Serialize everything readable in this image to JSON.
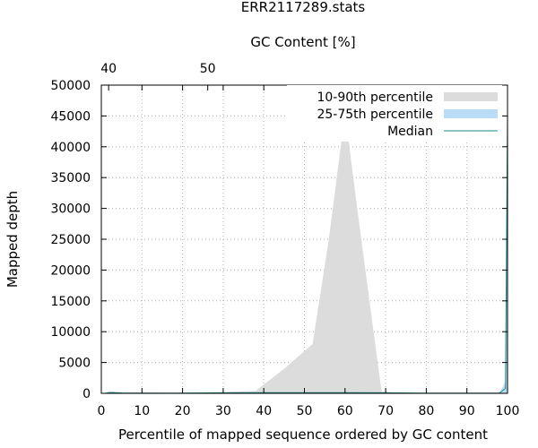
{
  "chart_data": {
    "type": "area",
    "title": "ERR2117289.stats",
    "xlabel": "Percentile of mapped sequence ordered by GC content",
    "ylabel": "Mapped depth",
    "x2label": "GC Content [%]",
    "xlim": [
      0,
      100
    ],
    "ylim": [
      0,
      50000
    ],
    "xticks": [
      0,
      10,
      20,
      30,
      40,
      50,
      60,
      70,
      80,
      90,
      100
    ],
    "yticks": [
      0,
      5000,
      10000,
      15000,
      20000,
      25000,
      30000,
      35000,
      40000,
      45000,
      50000
    ],
    "x2ticks": [
      {
        "label": "40",
        "x": 1.8
      },
      {
        "label": "50",
        "x": 26.2
      }
    ],
    "grid": true,
    "legend_position": "top-right",
    "series": [
      {
        "name": "10-90th percentile",
        "color": "#dcdcdc",
        "x": [
          1,
          2,
          3,
          5,
          10,
          20,
          30,
          38,
          45,
          52,
          56,
          60,
          63,
          66,
          69,
          72,
          80,
          90,
          98,
          99.5,
          100
        ],
        "upper": [
          100,
          350,
          300,
          200,
          150,
          120,
          200,
          400,
          4000,
          8000,
          25000,
          45500,
          30000,
          15000,
          300,
          100,
          50,
          30,
          50,
          2000,
          50000
        ],
        "lower": [
          0,
          0,
          0,
          0,
          0,
          0,
          0,
          0,
          0,
          0,
          0,
          0,
          0,
          0,
          0,
          0,
          0,
          0,
          0,
          0,
          0
        ]
      },
      {
        "name": "25-75th percentile",
        "color": "#b9dcf7",
        "x": [
          1,
          2,
          3,
          5,
          10,
          20,
          30,
          40,
          50,
          60,
          70,
          80,
          90,
          98,
          99.5,
          100
        ],
        "upper": [
          50,
          200,
          150,
          100,
          80,
          60,
          120,
          150,
          150,
          150,
          120,
          60,
          40,
          40,
          1500,
          48000
        ],
        "lower": [
          0,
          0,
          0,
          0,
          0,
          0,
          0,
          0,
          0,
          0,
          0,
          0,
          0,
          0,
          0,
          0
        ]
      },
      {
        "name": "Median",
        "color": "#1a8a8a",
        "x": [
          1,
          2,
          3,
          5,
          10,
          20,
          30,
          40,
          50,
          60,
          70,
          80,
          90,
          98,
          99.5,
          100
        ],
        "values": [
          20,
          120,
          100,
          60,
          50,
          40,
          80,
          100,
          100,
          100,
          80,
          40,
          30,
          30,
          800,
          45000
        ]
      }
    ]
  }
}
